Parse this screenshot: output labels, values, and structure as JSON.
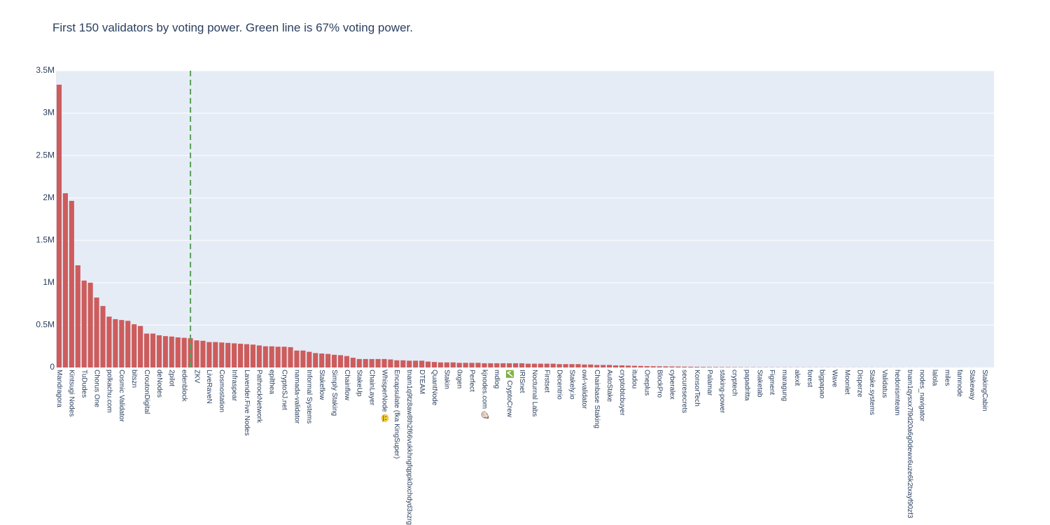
{
  "chart_data": {
    "type": "bar",
    "title": "First 150 validators by voting power. Green line is 67% voting power.",
    "color": "#cd5c5c",
    "grid": true,
    "ylim": [
      0,
      3500000
    ],
    "yticks": [
      0,
      {
        "value": 500000,
        "label": "0.5M"
      },
      {
        "value": 1000000,
        "label": "1M"
      },
      {
        "value": 1500000,
        "label": "1.5M"
      },
      {
        "value": 2000000,
        "label": "2M"
      },
      {
        "value": 2500000,
        "label": "2.5M"
      },
      {
        "value": 3000000,
        "label": "3M"
      },
      {
        "value": 3500000,
        "label": "3.5M"
      }
    ],
    "vline": {
      "index": 21,
      "color": "#5aa05a"
    },
    "categories": [
      "Mandragora",
      null,
      "Kintsugi Nodes",
      null,
      "TuDudes",
      null,
      "Chorus One",
      null,
      "polkachu.com",
      null,
      "Cosmic Validator",
      null,
      "bitszn",
      null,
      "CroutonDigital",
      null,
      "deNodes",
      null,
      "2pilot",
      null,
      "edenblock",
      null,
      "ZKV",
      null,
      "LiveRaveN",
      null,
      "Cosmostation",
      null,
      "Infraspear",
      null,
      "Lavender.Five Nodes",
      null,
      "PathrockNetwork",
      null,
      "epilthea",
      null,
      "CryptoSJ.net",
      null,
      "namada-validator",
      null,
      "Informal Systems",
      null,
      "Stakeflow",
      null,
      "Simply Staking",
      null,
      "Chainflow",
      null,
      "StakeUp",
      null,
      "ChainLayer",
      null,
      "WhisperNode 🤐",
      null,
      "Encapsulate (fka KingSuper)",
      null,
      "tnam1q9tz8aw8th2f66vukkhngfqppk0xchdyd3xzrgx",
      null,
      "DTEAM",
      null,
      "QuantNode",
      null,
      "Stakin",
      null,
      "0xgen",
      null,
      "Perfect",
      null,
      "kjnodes.com 🦪",
      null,
      "mdlog",
      null,
      "✅ CryptoCrew",
      null,
      "IRISnet",
      null,
      "Nocturnal Labs",
      null,
      "Firstset",
      null,
      "Decentrio",
      null,
      "Stakely.io",
      null,
      "owl-validator",
      null,
      "Chainbase Staking",
      null,
      "AutoStake",
      null,
      "cryptobtcbuyer",
      null,
      "itudou",
      null,
      "Oneplus",
      null,
      "BlockPro",
      null,
      "cyberalex",
      null,
      "securesecrets",
      null,
      "KonsorTech",
      null,
      "Palamar",
      null,
      "staking-power",
      null,
      "cryptech",
      null,
      "papadritta",
      null,
      "Staketab",
      null,
      "Figment",
      null,
      "maragung",
      null,
      "alexit",
      null,
      "forest",
      null,
      "bigpapao",
      null,
      "Wave",
      null,
      "Moonlet",
      null,
      "Disperze",
      null,
      "Stake.systems",
      null,
      "Validatus",
      null,
      "hedonismteam",
      null,
      "tnam1qysxx7l9d20a6g0dewx6uze6k2txayf90zf3",
      null,
      "nodes_navigator",
      null,
      "lalola",
      null,
      "miles",
      null,
      "famnode",
      null,
      "Stakeway",
      null,
      "StakingCabin",
      null
    ],
    "values": [
      3335000,
      2055000,
      1965000,
      1205000,
      1025000,
      1000000,
      825000,
      725000,
      600000,
      570000,
      560000,
      550000,
      510000,
      490000,
      400000,
      400000,
      380000,
      370000,
      365000,
      355000,
      350000,
      345000,
      320000,
      315000,
      300000,
      300000,
      295000,
      290000,
      285000,
      280000,
      275000,
      270000,
      260000,
      250000,
      250000,
      245000,
      245000,
      240000,
      200000,
      200000,
      185000,
      170000,
      165000,
      160000,
      150000,
      145000,
      135000,
      115000,
      100000,
      100000,
      100000,
      100000,
      100000,
      95000,
      85000,
      85000,
      80000,
      80000,
      80000,
      70000,
      65000,
      60000,
      60000,
      60000,
      55000,
      55000,
      55000,
      55000,
      50000,
      50000,
      50000,
      50000,
      50000,
      50000,
      50000,
      45000,
      45000,
      45000,
      45000,
      45000,
      40000,
      40000,
      40000,
      40000,
      35000,
      35000,
      30000,
      30000,
      30000,
      25000,
      25000,
      22000,
      20000,
      18000,
      16000,
      15000,
      14000,
      13000,
      12000,
      11000,
      10000,
      9000,
      8000,
      7000,
      6000,
      5500,
      5000,
      4500,
      4000,
      3500,
      3000,
      3000,
      2800,
      2600,
      2500,
      2400,
      2300,
      2200,
      2100,
      2000,
      2000,
      1900,
      1800,
      1700,
      1600,
      1500,
      1500,
      1400,
      1400,
      1300,
      1300,
      1200,
      1200,
      1100,
      1100,
      1000,
      1000,
      1000,
      900,
      900,
      900,
      800,
      800,
      800,
      700,
      700,
      700,
      600,
      600,
      500
    ]
  }
}
